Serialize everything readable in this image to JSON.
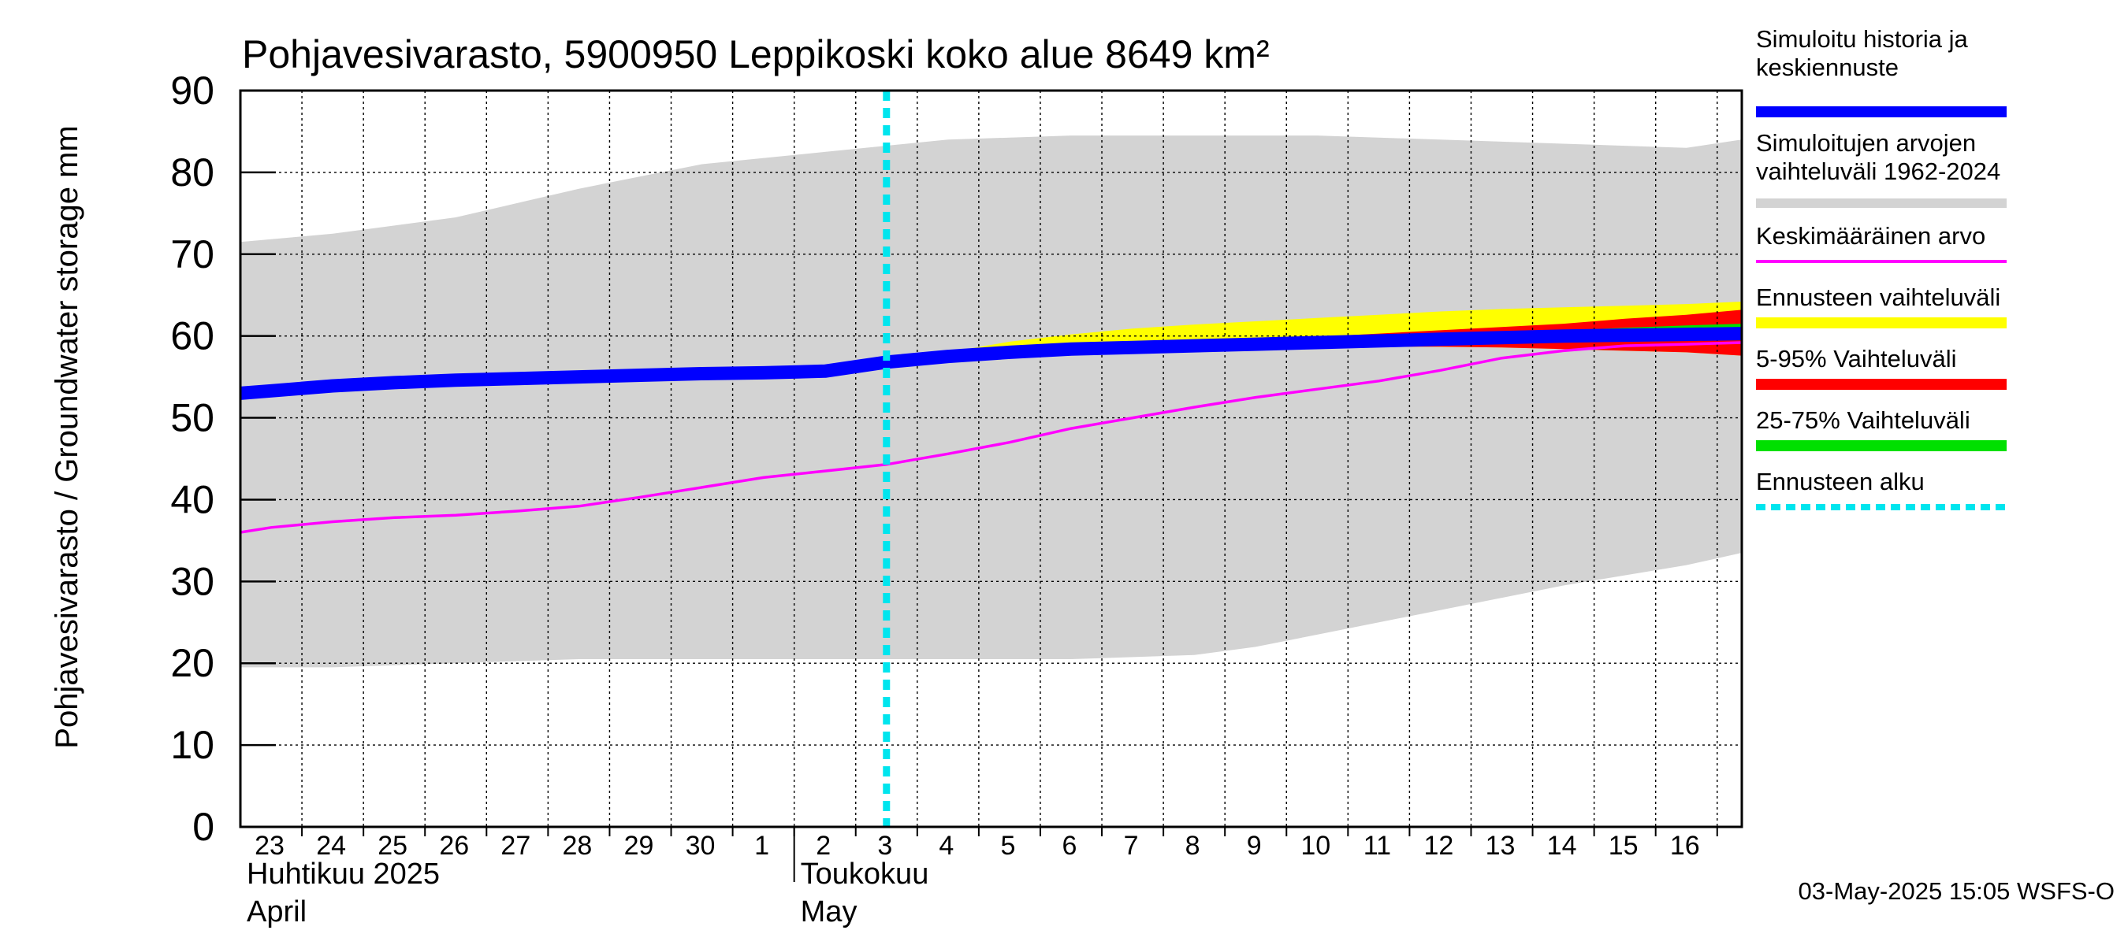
{
  "chart_data": {
    "type": "area",
    "title": "Pohjavesivarasto, 5900950 Leppikoski koko alue 8649 km²",
    "ylabel": "Pohjavesivarasto / Groundwater storage   mm",
    "ylim": [
      0,
      90
    ],
    "yticks": [
      "0",
      "10",
      "20",
      "30",
      "40",
      "50",
      "60",
      "70",
      "80",
      "90"
    ],
    "xlim": [
      -0.5,
      23.9
    ],
    "day_labels": [
      "23",
      "24",
      "25",
      "26",
      "27",
      "28",
      "29",
      "30",
      "1",
      "2",
      "3",
      "4",
      "5",
      "6",
      "7",
      "8",
      "9",
      "10",
      "11",
      "12",
      "13",
      "14",
      "15",
      "16"
    ],
    "months": [
      {
        "line1": "Huhtikuu  2025",
        "line2": "April",
        "start": 0
      },
      {
        "line1": "Toukokuu",
        "line2": "May",
        "start": 9
      }
    ],
    "forecast_start": 10,
    "series": {
      "range_1962_2024": {
        "x": [
          -0.5,
          1,
          3,
          5,
          7,
          9,
          11,
          13,
          15,
          16,
          17,
          19,
          21,
          23,
          23.9
        ],
        "upper": [
          71.5,
          72.5,
          74.5,
          78,
          81,
          82.5,
          84,
          84.5,
          84.5,
          84.5,
          84.5,
          84,
          83.5,
          83,
          84
        ],
        "lower": [
          19.5,
          19.5,
          20,
          20.5,
          20.5,
          20.5,
          20.5,
          20.5,
          21,
          22,
          23.5,
          26.5,
          29.5,
          32,
          33.5
        ]
      },
      "simulated_history": {
        "x": [
          -0.5,
          0,
          1,
          2,
          3,
          4,
          5,
          6,
          7,
          8,
          9,
          10,
          11,
          12,
          13,
          14,
          15,
          16,
          17,
          18,
          19,
          20,
          21,
          22,
          23,
          23.9
        ],
        "values": [
          53,
          53.3,
          53.9,
          54.3,
          54.6,
          54.8,
          55,
          55.2,
          55.4,
          55.5,
          55.7,
          56.8,
          57.5,
          58,
          58.4,
          58.6,
          58.8,
          59,
          59.2,
          59.4,
          59.6,
          59.8,
          60,
          60.1,
          60.2,
          60.3
        ]
      },
      "mean_value": {
        "x": [
          -0.5,
          0,
          1,
          2,
          3,
          4,
          5,
          6,
          7,
          8,
          9,
          10,
          11,
          12,
          13,
          14,
          15,
          16,
          17,
          18,
          19,
          20,
          21,
          22,
          23,
          23.9
        ],
        "values": [
          36,
          36.6,
          37.3,
          37.8,
          38.1,
          38.6,
          39.2,
          40.3,
          41.5,
          42.7,
          43.5,
          44.3,
          45.6,
          47,
          48.7,
          50,
          51.3,
          52.5,
          53.5,
          54.5,
          55.8,
          57.3,
          58.2,
          58.8,
          59,
          59.2
        ]
      },
      "forecast_range": {
        "x": [
          10,
          11,
          12,
          13,
          14,
          15,
          16,
          17,
          18,
          19,
          20,
          21,
          22,
          23,
          23.9
        ],
        "upper": [
          56.8,
          58,
          59.3,
          60.2,
          60.9,
          61.4,
          61.8,
          62.2,
          62.6,
          63,
          63.3,
          63.5,
          63.7,
          63.9,
          64.2
        ],
        "lower": [
          56.8,
          57.3,
          57.7,
          58.1,
          58.3,
          58.5,
          58.6,
          58.7,
          58.7,
          58.7,
          58.6,
          58.4,
          58.2,
          58,
          57.6
        ]
      },
      "p5_95": {
        "x": [
          10,
          11,
          12,
          13,
          14,
          15,
          16,
          17,
          18,
          19,
          20,
          21,
          22,
          23,
          23.9
        ],
        "upper": [
          56.8,
          57.6,
          58.2,
          58.6,
          58.9,
          59.2,
          59.5,
          59.9,
          60.3,
          60.7,
          61.1,
          61.5,
          62.1,
          62.6,
          63.2
        ],
        "lower": [
          56.8,
          57.3,
          57.7,
          58.1,
          58.3,
          58.5,
          58.6,
          58.7,
          58.7,
          58.7,
          58.6,
          58.4,
          58.2,
          58,
          57.6
        ]
      },
      "p25_75": {
        "x": [
          10,
          11,
          12,
          13,
          14,
          15,
          16,
          17,
          18,
          19,
          20,
          21,
          22,
          23,
          23.9
        ],
        "upper": [
          56.8,
          57.5,
          58,
          58.4,
          58.7,
          59,
          59.2,
          59.5,
          59.8,
          60.1,
          60.4,
          60.7,
          61,
          61.3,
          61.5
        ],
        "lower": [
          56.8,
          57.4,
          57.9,
          58.2,
          58.5,
          58.7,
          58.9,
          59,
          59.2,
          59.3,
          59.4,
          59.5,
          59.6,
          59.7,
          59.8
        ]
      }
    },
    "legend": [
      {
        "label": "Simuloitu historia ja keskiennuste",
        "color": "#0000ff",
        "style": "thick"
      },
      {
        "label": "Simuloitujen arvojen vaihteluväli 1962-2024",
        "color": "#d3d3d3",
        "style": "band"
      },
      {
        "label": "Keskimääräinen arvo",
        "color": "#ff00ff",
        "style": "thin"
      },
      {
        "label": "Ennusteen vaihteluväli",
        "color": "#ffff00",
        "style": "band"
      },
      {
        "label": "5-95% Vaihteluväli",
        "color": "#ff0000",
        "style": "band"
      },
      {
        "label": "25-75% Vaihteluväli",
        "color": "#00e000",
        "style": "band"
      },
      {
        "label": "Ennusteen alku",
        "color": "#00e5ee",
        "style": "dashed"
      }
    ],
    "footer": "03-May-2025 15:05 WSFS-O"
  }
}
